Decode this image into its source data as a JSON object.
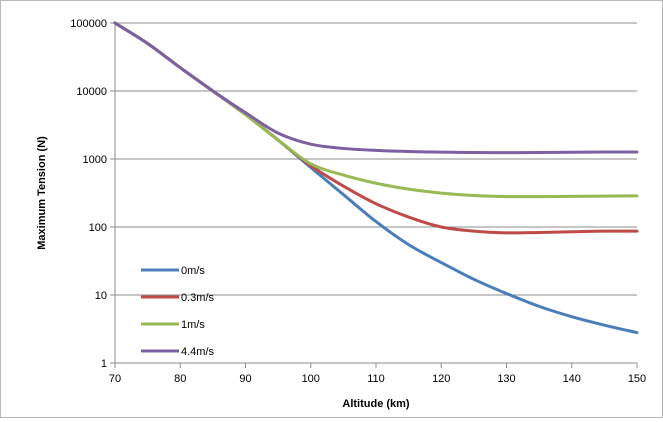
{
  "chart_data": {
    "type": "line",
    "title": "",
    "xlabel": "Altitude (km)",
    "ylabel": "Maximum Tension  (N)",
    "xlim": [
      70,
      150
    ],
    "ylim": [
      1,
      100000
    ],
    "yscale": "log",
    "grid": "horizontal",
    "legend_position": "bottom-left",
    "x_ticks": [
      "70",
      "80",
      "90",
      "100",
      "110",
      "120",
      "130",
      "140",
      "150"
    ],
    "y_ticks": [
      "1",
      "10",
      "100",
      "1000",
      "10000",
      "100000"
    ],
    "series": [
      {
        "name": "0m/s",
        "color": "#4a7ebb",
        "points": [
          [
            70,
            100000
          ],
          [
            75,
            50000
          ],
          [
            80,
            22000
          ],
          [
            85,
            10000
          ],
          [
            90,
            4500
          ],
          [
            95,
            1900
          ],
          [
            100,
            750
          ],
          [
            105,
            300
          ],
          [
            110,
            120
          ],
          [
            115,
            55
          ],
          [
            120,
            30
          ],
          [
            125,
            17
          ],
          [
            130,
            10.5
          ],
          [
            135,
            6.8
          ],
          [
            140,
            4.8
          ],
          [
            145,
            3.6
          ],
          [
            150,
            2.8
          ]
        ]
      },
      {
        "name": "0.3m/s",
        "color": "#be4b48",
        "points": [
          [
            70,
            100000
          ],
          [
            75,
            50000
          ],
          [
            80,
            22000
          ],
          [
            85,
            10000
          ],
          [
            90,
            4500
          ],
          [
            95,
            1900
          ],
          [
            100,
            800
          ],
          [
            105,
            400
          ],
          [
            110,
            220
          ],
          [
            115,
            140
          ],
          [
            120,
            100
          ],
          [
            125,
            87
          ],
          [
            130,
            82
          ],
          [
            135,
            83
          ],
          [
            140,
            85
          ],
          [
            145,
            87
          ],
          [
            150,
            87
          ]
        ]
      },
      {
        "name": "1m/s",
        "color": "#98b954",
        "points": [
          [
            70,
            100000
          ],
          [
            75,
            50000
          ],
          [
            80,
            22000
          ],
          [
            85,
            10000
          ],
          [
            90,
            4500
          ],
          [
            95,
            1900
          ],
          [
            100,
            850
          ],
          [
            105,
            580
          ],
          [
            110,
            440
          ],
          [
            115,
            360
          ],
          [
            120,
            315
          ],
          [
            125,
            290
          ],
          [
            130,
            280
          ],
          [
            135,
            280
          ],
          [
            140,
            282
          ],
          [
            145,
            285
          ],
          [
            150,
            287
          ]
        ]
      },
      {
        "name": "4.4m/s",
        "color": "#7d60a0",
        "points": [
          [
            70,
            100000
          ],
          [
            75,
            50000
          ],
          [
            80,
            22000
          ],
          [
            85,
            10000
          ],
          [
            90,
            4800
          ],
          [
            95,
            2400
          ],
          [
            100,
            1650
          ],
          [
            105,
            1430
          ],
          [
            110,
            1340
          ],
          [
            115,
            1290
          ],
          [
            120,
            1260
          ],
          [
            125,
            1245
          ],
          [
            130,
            1240
          ],
          [
            135,
            1245
          ],
          [
            140,
            1255
          ],
          [
            145,
            1265
          ],
          [
            150,
            1270
          ]
        ]
      }
    ]
  }
}
